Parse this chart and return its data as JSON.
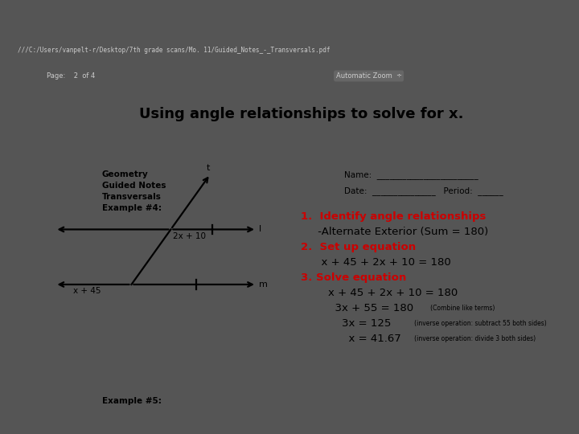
{
  "browser_bar_color": "#3a3a3a",
  "browser_tab_color": "#555555",
  "url_bar_color": "#f5f5f5",
  "nav_bar_color": "#4a4a4a",
  "header_bg": "#ffffff",
  "content_bg": "#ffffff",
  "outer_bg": "#555555",
  "header_text": "Using angle relationships to solve for x.",
  "header_fontsize": 13,
  "geo_labels": [
    "Geometry",
    "Guided Notes",
    "Transversals",
    "Example #4:"
  ],
  "name_line": "Name:  ________________________",
  "date_line": "Date:  _______________   Period:  ______",
  "step1_red": "1.  Identify angle relationships",
  "step1_black": "     -Alternate Exterior (Sum = 180)",
  "step2_red": "2.  Set up equation",
  "step2_black": "      x + 45 + 2x + 10 = 180",
  "step3_red": "3. Solve equation",
  "solve_line1": "        x + 45 + 2x + 10 = 180",
  "solve_line2": "          3x + 55 = 180",
  "solve_line2_note": "   (Combine like terms)",
  "solve_line3": "            3x = 125",
  "solve_line3_note": "   (inverse operation: subtract 55 both sides)",
  "solve_line4": "              x = 41.67",
  "solve_line4_note": "   (inverse operation: divide 3 both sides)",
  "example5": "Example #5:",
  "red": "#cc0000",
  "black": "#000000",
  "white": "#ffffff",
  "angle_top": "2x + 10",
  "angle_bot": "x + 45",
  "t_label": "t",
  "l_label": "l",
  "m_label": "m"
}
